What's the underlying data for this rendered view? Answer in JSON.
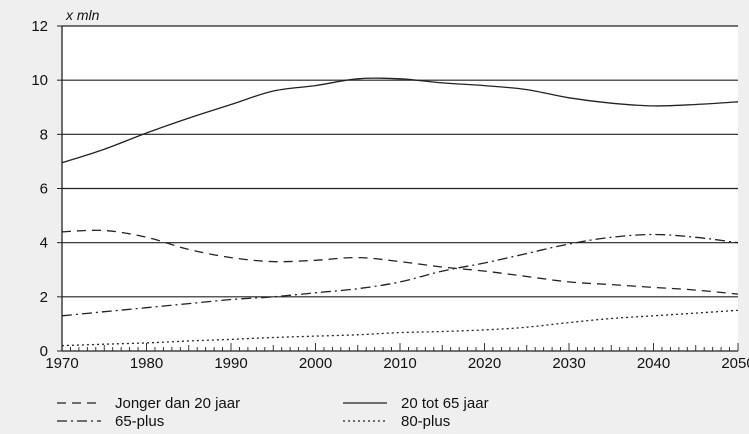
{
  "chart_data": {
    "type": "line",
    "title": "",
    "ylabel": "x mln",
    "xlabel": "",
    "xlim": [
      1970,
      2050
    ],
    "ylim": [
      0,
      12
    ],
    "xticks": [
      1970,
      1980,
      1990,
      2000,
      2010,
      2020,
      2030,
      2040,
      2050
    ],
    "yticks": [
      0,
      2,
      4,
      6,
      8,
      10,
      12
    ],
    "grid": "horizontal",
    "legend_position": "bottom",
    "series": [
      {
        "name": "Jonger dan 20 jaar",
        "style": "dashed",
        "color": "#222222",
        "points": [
          [
            1970,
            4.4
          ],
          [
            1975,
            4.45
          ],
          [
            1980,
            4.2
          ],
          [
            1985,
            3.75
          ],
          [
            1990,
            3.45
          ],
          [
            1995,
            3.3
          ],
          [
            2000,
            3.35
          ],
          [
            2005,
            3.45
          ],
          [
            2010,
            3.3
          ],
          [
            2015,
            3.1
          ],
          [
            2020,
            2.95
          ],
          [
            2025,
            2.75
          ],
          [
            2030,
            2.55
          ],
          [
            2035,
            2.45
          ],
          [
            2040,
            2.35
          ],
          [
            2045,
            2.25
          ],
          [
            2050,
            2.1
          ]
        ]
      },
      {
        "name": "20 tot 65 jaar",
        "style": "solid",
        "color": "#222222",
        "points": [
          [
            1970,
            6.95
          ],
          [
            1975,
            7.45
          ],
          [
            1980,
            8.05
          ],
          [
            1985,
            8.6
          ],
          [
            1990,
            9.1
          ],
          [
            1995,
            9.6
          ],
          [
            2000,
            9.8
          ],
          [
            2005,
            10.05
          ],
          [
            2010,
            10.05
          ],
          [
            2015,
            9.9
          ],
          [
            2020,
            9.8
          ],
          [
            2025,
            9.65
          ],
          [
            2030,
            9.35
          ],
          [
            2035,
            9.15
          ],
          [
            2040,
            9.05
          ],
          [
            2045,
            9.1
          ],
          [
            2050,
            9.2
          ]
        ]
      },
      {
        "name": "65-plus",
        "style": "dashdot",
        "color": "#222222",
        "points": [
          [
            1970,
            1.3
          ],
          [
            1975,
            1.45
          ],
          [
            1980,
            1.6
          ],
          [
            1985,
            1.75
          ],
          [
            1990,
            1.9
          ],
          [
            1995,
            2.0
          ],
          [
            2000,
            2.15
          ],
          [
            2005,
            2.3
          ],
          [
            2010,
            2.55
          ],
          [
            2015,
            2.95
          ],
          [
            2020,
            3.25
          ],
          [
            2025,
            3.6
          ],
          [
            2030,
            3.95
          ],
          [
            2035,
            4.2
          ],
          [
            2040,
            4.3
          ],
          [
            2045,
            4.2
          ],
          [
            2050,
            4.0
          ]
        ]
      },
      {
        "name": "80-plus",
        "style": "dotted",
        "color": "#222222",
        "points": [
          [
            1970,
            0.2
          ],
          [
            1975,
            0.25
          ],
          [
            1980,
            0.3
          ],
          [
            1985,
            0.37
          ],
          [
            1990,
            0.43
          ],
          [
            1995,
            0.5
          ],
          [
            2000,
            0.55
          ],
          [
            2005,
            0.6
          ],
          [
            2010,
            0.68
          ],
          [
            2015,
            0.72
          ],
          [
            2020,
            0.78
          ],
          [
            2025,
            0.88
          ],
          [
            2030,
            1.05
          ],
          [
            2035,
            1.2
          ],
          [
            2040,
            1.3
          ],
          [
            2045,
            1.4
          ],
          [
            2050,
            1.5
          ]
        ]
      }
    ]
  },
  "legend": [
    {
      "label": "Jonger dan 20 jaar",
      "style": "dashed"
    },
    {
      "label": "20 tot 65 jaar",
      "style": "solid"
    },
    {
      "label": "65-plus",
      "style": "dashdot"
    },
    {
      "label": "80-plus",
      "style": "dotted"
    }
  ]
}
